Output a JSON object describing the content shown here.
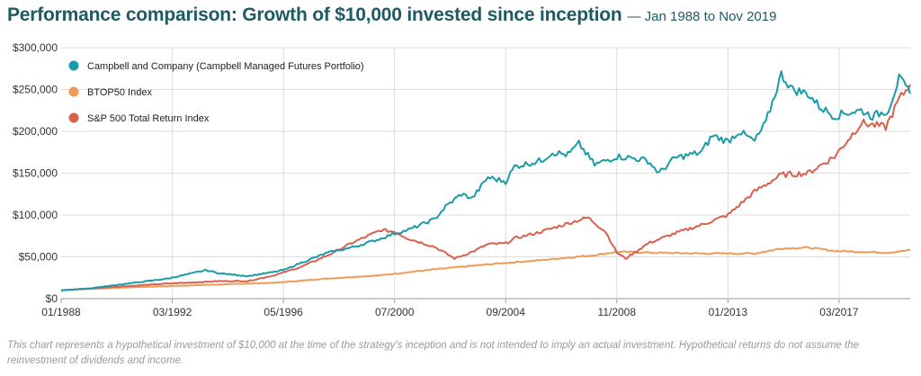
{
  "header": {
    "title": "Performance comparison: Growth of $10,000 invested since inception",
    "subtitle": "— Jan 1988 to Nov 2019"
  },
  "footnote": "This chart represents a hypothetical investment of $10,000 at the time of the strategy's inception and is not intended to imply an actual investment. Hypothetical returns do not assume the reinvestment of dividends and income.",
  "chart_data": {
    "type": "line",
    "title": "Performance comparison: Growth of $10,000 invested since inception",
    "subtitle": "— Jan 1988 to Nov 2019",
    "xlabel": "",
    "ylabel": "",
    "xlim": [
      "1988-01",
      "2019-11"
    ],
    "ylim": [
      0,
      300000
    ],
    "grid": true,
    "legend_position": "top-left",
    "x_ticks": [
      "01/1988",
      "03/1992",
      "05/1996",
      "07/2000",
      "09/2004",
      "11/2008",
      "01/2013",
      "03/2017"
    ],
    "y_ticks": [
      "$0",
      "$50,000",
      "$100,000",
      "$150,000",
      "$200,000",
      "$250,000",
      "$300,000"
    ],
    "series": [
      {
        "name": "Campbell and Company (Campbell Managed Futures Portfolio)",
        "color": "#1a9ba8",
        "points": [
          [
            "1988-01",
            10000
          ],
          [
            "1989-01",
            12000
          ],
          [
            "1990-01",
            16000
          ],
          [
            "1991-01",
            20000
          ],
          [
            "1992-01",
            24000
          ],
          [
            "1993-01",
            31000
          ],
          [
            "1993-06",
            34000
          ],
          [
            "1994-01",
            30000
          ],
          [
            "1995-01",
            27000
          ],
          [
            "1996-01",
            32000
          ],
          [
            "1996-06",
            35000
          ],
          [
            "1997-01",
            43000
          ],
          [
            "1998-01",
            55000
          ],
          [
            "1999-01",
            62000
          ],
          [
            "2000-01",
            72000
          ],
          [
            "2000-07",
            78000
          ],
          [
            "2001-01",
            82000
          ],
          [
            "2002-01",
            95000
          ],
          [
            "2002-06",
            110000
          ],
          [
            "2003-01",
            125000
          ],
          [
            "2003-06",
            120000
          ],
          [
            "2004-01",
            145000
          ],
          [
            "2004-09",
            140000
          ],
          [
            "2005-01",
            158000
          ],
          [
            "2006-01",
            165000
          ],
          [
            "2006-06",
            175000
          ],
          [
            "2007-01",
            172000
          ],
          [
            "2007-06",
            185000
          ],
          [
            "2008-01",
            160000
          ],
          [
            "2008-11",
            170000
          ],
          [
            "2009-06",
            168000
          ],
          [
            "2010-01",
            165000
          ],
          [
            "2010-06",
            150000
          ],
          [
            "2011-01",
            168000
          ],
          [
            "2012-01",
            175000
          ],
          [
            "2012-06",
            195000
          ],
          [
            "2013-01",
            188000
          ],
          [
            "2013-06",
            200000
          ],
          [
            "2014-01",
            188000
          ],
          [
            "2014-06",
            210000
          ],
          [
            "2015-01",
            268000
          ],
          [
            "2015-06",
            250000
          ],
          [
            "2016-01",
            245000
          ],
          [
            "2016-06",
            230000
          ],
          [
            "2017-01",
            218000
          ],
          [
            "2017-06",
            222000
          ],
          [
            "2018-01",
            225000
          ],
          [
            "2018-06",
            218000
          ],
          [
            "2019-01",
            225000
          ],
          [
            "2019-06",
            263000
          ],
          [
            "2019-11",
            245000
          ]
        ]
      },
      {
        "name": "BTOP50 Index",
        "color": "#f19a56",
        "points": [
          [
            "1988-01",
            10000
          ],
          [
            "1990-01",
            13000
          ],
          [
            "1992-01",
            15000
          ],
          [
            "1994-01",
            17000
          ],
          [
            "1996-01",
            19000
          ],
          [
            "1998-01",
            24000
          ],
          [
            "2000-01",
            28000
          ],
          [
            "2002-01",
            35000
          ],
          [
            "2004-01",
            41000
          ],
          [
            "2006-01",
            46000
          ],
          [
            "2008-01",
            52000
          ],
          [
            "2008-11",
            56000
          ],
          [
            "2010-01",
            55000
          ],
          [
            "2012-01",
            54000
          ],
          [
            "2014-01",
            54000
          ],
          [
            "2015-01",
            60000
          ],
          [
            "2016-01",
            61000
          ],
          [
            "2017-01",
            57000
          ],
          [
            "2018-01",
            56000
          ],
          [
            "2019-01",
            55000
          ],
          [
            "2019-11",
            58000
          ]
        ]
      },
      {
        "name": "S&P 500 Total Return Index",
        "color": "#d9604f",
        "points": [
          [
            "1988-01",
            10000
          ],
          [
            "1990-01",
            14000
          ],
          [
            "1992-01",
            18000
          ],
          [
            "1994-01",
            21000
          ],
          [
            "1995-01",
            21000
          ],
          [
            "1996-01",
            28000
          ],
          [
            "1997-01",
            38000
          ],
          [
            "1998-01",
            52000
          ],
          [
            "1999-01",
            68000
          ],
          [
            "2000-01",
            82000
          ],
          [
            "2000-07",
            80000
          ],
          [
            "2001-01",
            72000
          ],
          [
            "2002-01",
            62000
          ],
          [
            "2002-10",
            48000
          ],
          [
            "2003-06",
            56000
          ],
          [
            "2004-01",
            65000
          ],
          [
            "2004-09",
            66000
          ],
          [
            "2005-01",
            72000
          ],
          [
            "2006-01",
            80000
          ],
          [
            "2007-01",
            90000
          ],
          [
            "2007-10",
            97000
          ],
          [
            "2008-06",
            80000
          ],
          [
            "2008-11",
            55000
          ],
          [
            "2009-03",
            48000
          ],
          [
            "2010-01",
            66000
          ],
          [
            "2011-01",
            78000
          ],
          [
            "2012-01",
            88000
          ],
          [
            "2013-01",
            100000
          ],
          [
            "2014-01",
            128000
          ],
          [
            "2015-01",
            148000
          ],
          [
            "2016-01",
            150000
          ],
          [
            "2017-01",
            170000
          ],
          [
            "2018-01",
            210000
          ],
          [
            "2018-12",
            205000
          ],
          [
            "2019-06",
            238000
          ],
          [
            "2019-11",
            256000
          ]
        ]
      }
    ]
  }
}
